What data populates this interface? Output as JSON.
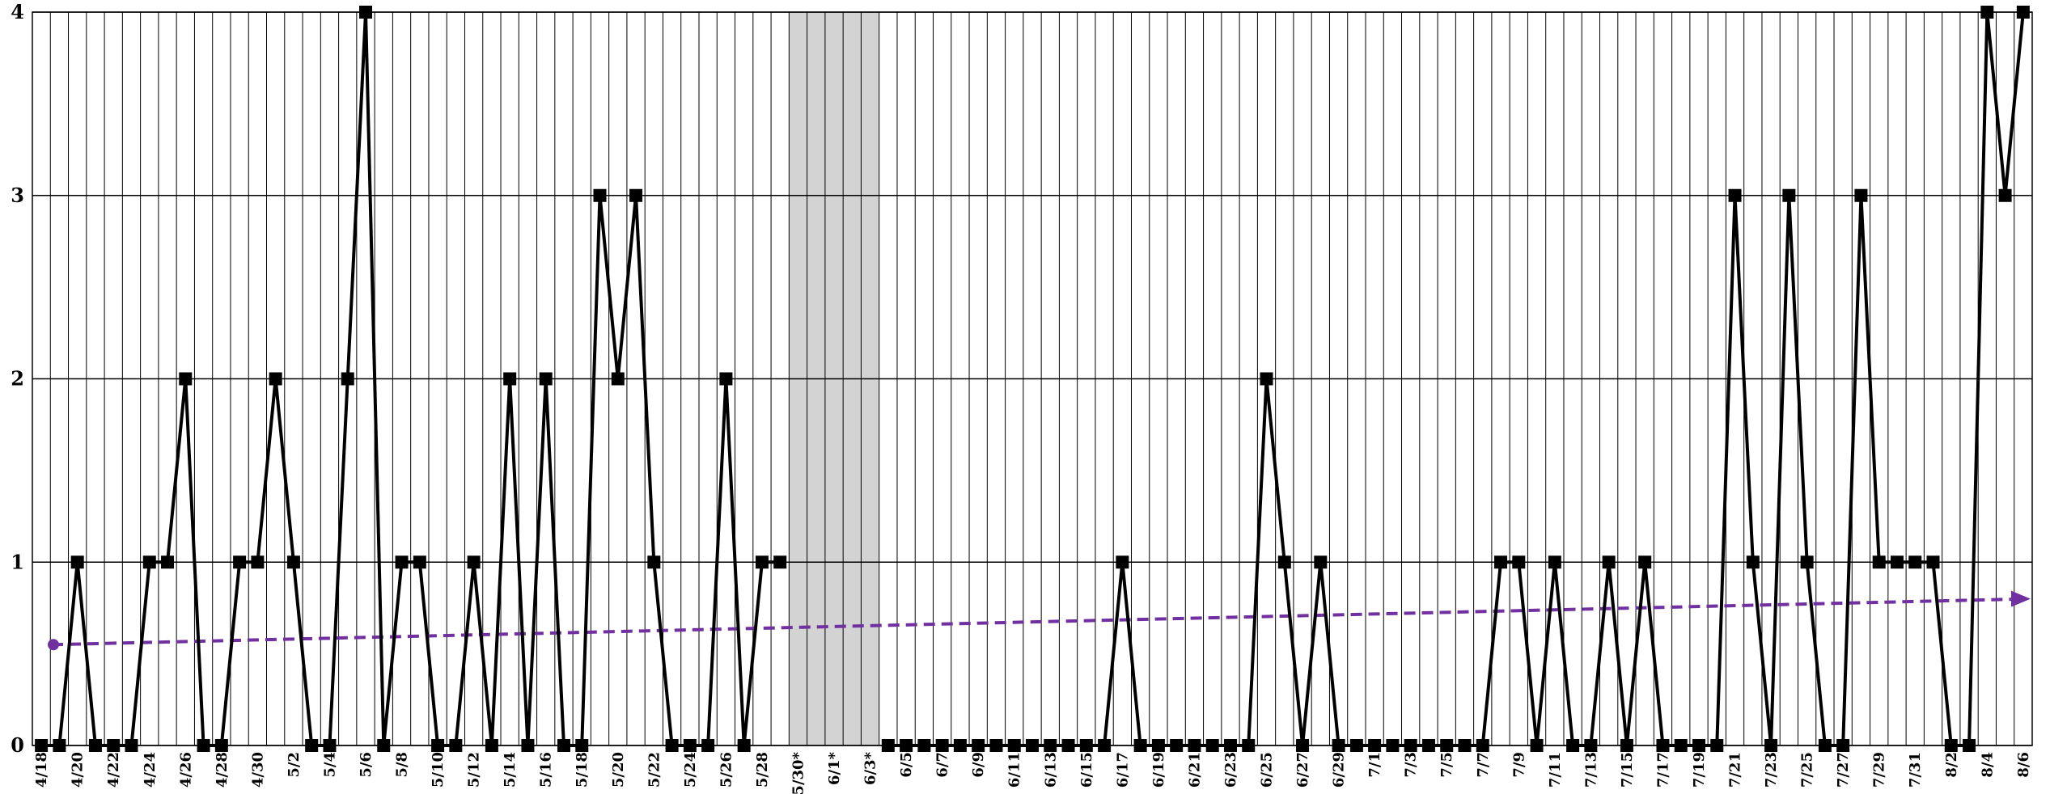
{
  "chart_data": {
    "type": "line",
    "title": "",
    "xlabel": "",
    "ylabel": "",
    "ylim": [
      0,
      4
    ],
    "yticks": [
      0,
      1,
      2,
      3,
      4
    ],
    "grid": true,
    "legend": "none",
    "categories": [
      "4/18",
      "4/19",
      "4/20",
      "4/21",
      "4/22",
      "4/23",
      "4/24",
      "4/25",
      "4/26",
      "4/27",
      "4/28",
      "4/29",
      "4/30",
      "5/1",
      "5/2",
      "5/3",
      "5/4",
      "5/5",
      "5/6",
      "5/7",
      "5/8",
      "5/9",
      "5/10",
      "5/11",
      "5/12",
      "5/13",
      "5/14",
      "5/15",
      "5/16",
      "5/17",
      "5/18",
      "5/19",
      "5/20",
      "5/21",
      "5/22",
      "5/23",
      "5/24",
      "5/25",
      "5/26",
      "5/27",
      "5/28",
      "5/29",
      "5/30*",
      "5/31*",
      "6/1*",
      "6/2*",
      "6/3*",
      "6/4",
      "6/5",
      "6/6",
      "6/7",
      "6/8",
      "6/9",
      "6/10",
      "6/11",
      "6/12",
      "6/13",
      "6/14",
      "6/15",
      "6/16",
      "6/17",
      "6/18",
      "6/19",
      "6/20",
      "6/21",
      "6/22",
      "6/23",
      "6/24",
      "6/25",
      "6/26",
      "6/27",
      "6/28",
      "6/29",
      "6/30",
      "7/1",
      "7/2",
      "7/3",
      "7/4",
      "7/5",
      "7/6",
      "7/7",
      "7/8",
      "7/9",
      "7/10",
      "7/11",
      "7/12",
      "7/13",
      "7/14",
      "7/15",
      "7/16",
      "7/17",
      "7/18",
      "7/19",
      "7/20",
      "7/21",
      "7/22",
      "7/23",
      "7/24",
      "7/25",
      "7/26",
      "7/27",
      "7/28",
      "7/29",
      "7/30",
      "7/31",
      "8/1",
      "8/2",
      "8/3",
      "8/4",
      "8/5",
      "8/6"
    ],
    "tick_labels": [
      "4/18",
      "4/20",
      "4/22",
      "4/24",
      "4/26",
      "4/28",
      "4/30",
      "5/2",
      "5/4",
      "5/6",
      "5/8",
      "5/10",
      "5/12",
      "5/14",
      "5/16",
      "5/18",
      "5/20",
      "5/22",
      "5/24",
      "5/26",
      "5/28",
      "5/30*",
      "6/1*",
      "6/3*",
      "6/5",
      "6/7",
      "6/9",
      "6/11",
      "6/13",
      "6/15",
      "6/17",
      "6/19",
      "6/21",
      "6/23",
      "6/25",
      "6/27",
      "6/29",
      "7/1",
      "7/3",
      "7/5",
      "7/7",
      "7/9",
      "7/11",
      "7/13",
      "7/15",
      "7/17",
      "7/19",
      "7/21",
      "7/23",
      "7/25",
      "7/27",
      "7/29",
      "7/31",
      "8/2",
      "8/4",
      "8/6"
    ],
    "series": [
      {
        "values": [
          0,
          0,
          1,
          0,
          0,
          0,
          1,
          1,
          2,
          0,
          0,
          1,
          1,
          2,
          1,
          0,
          0,
          2,
          4,
          0,
          1,
          1,
          0,
          0,
          1,
          0,
          2,
          0,
          2,
          0,
          0,
          3,
          2,
          3,
          1,
          0,
          0,
          0,
          2,
          0,
          1,
          1,
          null,
          null,
          null,
          null,
          null,
          0,
          0,
          0,
          0,
          0,
          0,
          0,
          0,
          0,
          0,
          0,
          0,
          0,
          1,
          0,
          0,
          0,
          0,
          0,
          0,
          0,
          2,
          1,
          0,
          1,
          0,
          0,
          0,
          0,
          0,
          0,
          0,
          0,
          0,
          1,
          1,
          0,
          1,
          0,
          0,
          1,
          0,
          1,
          0,
          0,
          0,
          0,
          3,
          1,
          0,
          3,
          1,
          0,
          0,
          3,
          1,
          1,
          1,
          1,
          0,
          0,
          4,
          3,
          4
        ],
        "color": "#000000",
        "marker": "square"
      }
    ],
    "trendline": {
      "start": 0.55,
      "end": 0.8,
      "color": "#7030a0",
      "style": "dashed-arrow"
    },
    "shaded_region": {
      "from": "5/30*",
      "to": "6/3*",
      "color": "#d3d3d3"
    }
  }
}
